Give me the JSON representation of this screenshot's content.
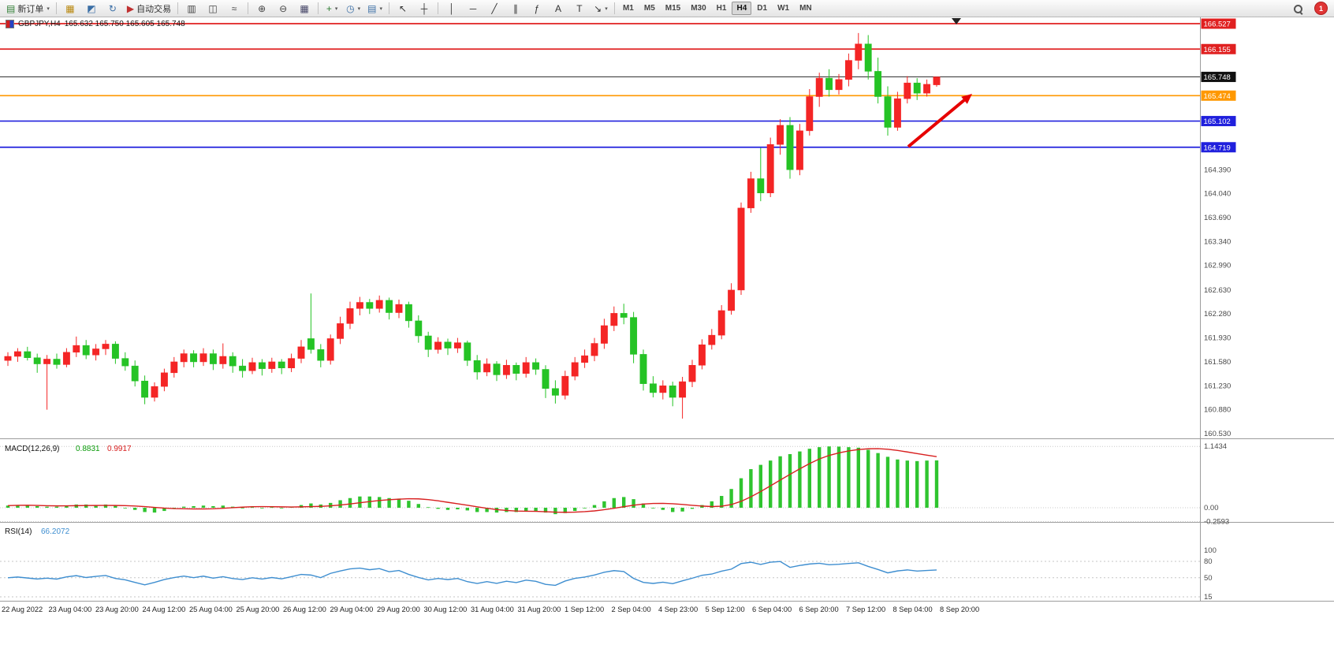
{
  "toolbar": {
    "items": [
      {
        "t": "b",
        "n": "new-order-button",
        "g": "▤",
        "gc": "#2e7d32",
        "l": "新订单",
        "dd": true
      },
      {
        "t": "s"
      },
      {
        "t": "b",
        "n": "market-watch-button",
        "g": "▦",
        "gc": "#b8860b"
      },
      {
        "t": "b",
        "n": "navigator-button",
        "g": "◩",
        "gc": "#3a6ea5"
      },
      {
        "t": "b",
        "n": "refresh-button",
        "g": "↻",
        "gc": "#3a6ea5"
      },
      {
        "t": "b",
        "n": "autotrade-button",
        "g": "▶",
        "gc": "#c03030",
        "l": "自动交易"
      },
      {
        "t": "s"
      },
      {
        "t": "b",
        "n": "bar-chart-button",
        "g": "▥",
        "gc": "#444"
      },
      {
        "t": "b",
        "n": "candlestick-chart-button",
        "g": "◫",
        "gc": "#444"
      },
      {
        "t": "b",
        "n": "line-chart-button",
        "g": "≈",
        "gc": "#444"
      },
      {
        "t": "s"
      },
      {
        "t": "b",
        "n": "zoom-in-button",
        "g": "⊕",
        "gc": "#444"
      },
      {
        "t": "b",
        "n": "zoom-out-button",
        "g": "⊖",
        "gc": "#444"
      },
      {
        "t": "b",
        "n": "tile-windows-button",
        "g": "▦",
        "gc": "#446"
      },
      {
        "t": "s"
      },
      {
        "t": "b",
        "n": "indicators-button",
        "g": "+",
        "gc": "#2e7d32",
        "dd": true
      },
      {
        "t": "b",
        "n": "periods-button",
        "g": "◷",
        "gc": "#3a6ea5",
        "dd": true
      },
      {
        "t": "b",
        "n": "templates-button",
        "g": "▤",
        "gc": "#3a6ea5",
        "dd": true
      },
      {
        "t": "s"
      },
      {
        "t": "b",
        "n": "cursor-button",
        "g": "↖",
        "gc": "#333"
      },
      {
        "t": "b",
        "n": "crosshair-button",
        "g": "┼",
        "gc": "#333"
      },
      {
        "t": "s"
      },
      {
        "t": "b",
        "n": "vertical-line-button",
        "g": "│",
        "gc": "#333"
      },
      {
        "t": "b",
        "n": "horizontal-line-button",
        "g": "─",
        "gc": "#333"
      },
      {
        "t": "b",
        "n": "trendline-button",
        "g": "╱",
        "gc": "#333"
      },
      {
        "t": "b",
        "n": "channel-button",
        "g": "∥",
        "gc": "#333"
      },
      {
        "t": "b",
        "n": "fibonacci-button",
        "g": "ƒ",
        "gc": "#333"
      },
      {
        "t": "b",
        "n": "text-button",
        "g": "A",
        "gc": "#333"
      },
      {
        "t": "b",
        "n": "label-button",
        "g": "T",
        "gc": "#333"
      },
      {
        "t": "b",
        "n": "arrows-button",
        "g": "↘",
        "gc": "#333",
        "dd": true
      },
      {
        "t": "s"
      },
      {
        "t": "tfs"
      }
    ],
    "timeframes": [
      "M1",
      "M5",
      "M15",
      "M30",
      "H1",
      "H4",
      "D1",
      "W1",
      "MN"
    ],
    "active_timeframe": "H4",
    "notification_count": "1"
  },
  "chart": {
    "symbol_title": "GBPJPY,H4",
    "ohlc_readout": "165.632 165.750 165.605 165.748",
    "levels": [
      {
        "price": 166.527,
        "label": "166.527",
        "color": "#e02020"
      },
      {
        "price": 166.155,
        "label": "166.155",
        "color": "#e02020"
      },
      {
        "price": 165.474,
        "label": "165.474",
        "color": "#ff9800"
      },
      {
        "price": 165.102,
        "label": "165.102",
        "color": "#2020dd"
      },
      {
        "price": 164.719,
        "label": "164.719",
        "color": "#2020dd"
      }
    ],
    "current_price": {
      "price": 165.748,
      "label": "165.748",
      "line_color": "#333333",
      "badge_color": "#111111"
    },
    "right_scale": [
      164.39,
      164.04,
      163.69,
      163.34,
      162.99,
      162.63,
      162.28,
      161.93,
      161.58,
      161.23,
      160.88,
      160.53
    ]
  },
  "macd": {
    "title": "MACD(12,26,9)",
    "main_value": "0.8831",
    "signal_value": "0.9917",
    "scale": [
      {
        "label": "1.1434",
        "value": 1.1434
      },
      {
        "label": "0.00",
        "value": 0
      },
      {
        "label": "-0.2593",
        "value": -0.2593
      }
    ],
    "histogram_color": "#2fc42f",
    "signal_color": "#d82020"
  },
  "rsi": {
    "title": "RSI(14)",
    "value": "66.2072",
    "scale": [
      {
        "label": "100",
        "value": 100
      },
      {
        "label": "80",
        "value": 80
      },
      {
        "label": "50",
        "value": 50
      },
      {
        "label": "15",
        "value": 15
      }
    ],
    "line_color": "#3e8ed0"
  },
  "chart_data": {
    "type": "candlestick",
    "symbol": "GBPJPY",
    "period": "H4",
    "up_color": "#f42525",
    "down_color": "#25c325",
    "ylim": [
      160.53,
      166.527
    ],
    "x_labels": [
      "22 Aug 2022",
      "23 Aug 04:00",
      "23 Aug 20:00",
      "24 Aug 12:00",
      "25 Aug 04:00",
      "25 Aug 20:00",
      "26 Aug 12:00",
      "29 Aug 04:00",
      "29 Aug 20:00",
      "30 Aug 12:00",
      "31 Aug 04:00",
      "31 Aug 20:00",
      "1 Sep 12:00",
      "2 Sep 04:00",
      "4 Sep 23:00",
      "5 Sep 12:00",
      "6 Sep 04:00",
      "6 Sep 20:00",
      "7 Sep 12:00",
      "8 Sep 04:00",
      "8 Sep 20:00"
    ],
    "candles": [
      [
        161.6,
        161.72,
        161.52,
        161.66
      ],
      [
        161.66,
        161.78,
        161.58,
        161.73
      ],
      [
        161.73,
        161.8,
        161.6,
        161.64
      ],
      [
        161.64,
        161.7,
        161.42,
        161.55
      ],
      [
        161.55,
        161.68,
        160.88,
        161.62
      ],
      [
        161.62,
        161.7,
        161.48,
        161.54
      ],
      [
        161.54,
        161.78,
        161.5,
        161.72
      ],
      [
        161.72,
        161.95,
        161.65,
        161.82
      ],
      [
        161.82,
        161.9,
        161.62,
        161.68
      ],
      [
        161.68,
        161.84,
        161.6,
        161.77
      ],
      [
        161.77,
        161.9,
        161.68,
        161.84
      ],
      [
        161.84,
        161.88,
        161.55,
        161.63
      ],
      [
        161.63,
        161.72,
        161.45,
        161.52
      ],
      [
        161.52,
        161.6,
        161.22,
        161.3
      ],
      [
        161.3,
        161.38,
        160.96,
        161.06
      ],
      [
        161.06,
        161.28,
        161.0,
        161.22
      ],
      [
        161.22,
        161.48,
        161.15,
        161.42
      ],
      [
        161.42,
        161.65,
        161.35,
        161.58
      ],
      [
        161.58,
        161.76,
        161.5,
        161.7
      ],
      [
        161.7,
        161.75,
        161.5,
        161.58
      ],
      [
        161.58,
        161.78,
        161.52,
        161.7
      ],
      [
        161.7,
        161.76,
        161.46,
        161.55
      ],
      [
        161.55,
        161.85,
        161.48,
        161.66
      ],
      [
        161.66,
        161.72,
        161.42,
        161.52
      ],
      [
        161.52,
        161.62,
        161.35,
        161.45
      ],
      [
        161.45,
        161.64,
        161.4,
        161.57
      ],
      [
        161.57,
        161.62,
        161.38,
        161.48
      ],
      [
        161.48,
        161.64,
        161.42,
        161.58
      ],
      [
        161.58,
        161.62,
        161.4,
        161.49
      ],
      [
        161.49,
        161.7,
        161.43,
        161.63
      ],
      [
        161.63,
        161.9,
        161.56,
        161.8
      ],
      [
        161.92,
        162.58,
        161.7,
        161.76
      ],
      [
        161.76,
        161.84,
        161.5,
        161.6
      ],
      [
        161.6,
        161.98,
        161.54,
        161.92
      ],
      [
        161.92,
        162.24,
        161.84,
        162.14
      ],
      [
        162.14,
        162.46,
        162.06,
        162.36
      ],
      [
        162.36,
        162.53,
        162.26,
        162.45
      ],
      [
        162.45,
        162.5,
        162.28,
        162.36
      ],
      [
        162.36,
        162.55,
        162.3,
        162.48
      ],
      [
        162.48,
        162.52,
        162.2,
        162.3
      ],
      [
        162.3,
        162.49,
        162.22,
        162.42
      ],
      [
        162.42,
        162.46,
        162.08,
        162.18
      ],
      [
        162.18,
        162.26,
        161.86,
        161.96
      ],
      [
        161.96,
        162.02,
        161.65,
        161.76
      ],
      [
        161.76,
        161.94,
        161.7,
        161.87
      ],
      [
        161.87,
        161.92,
        161.68,
        161.78
      ],
      [
        161.78,
        161.93,
        161.71,
        161.86
      ],
      [
        161.86,
        161.89,
        161.52,
        161.6
      ],
      [
        161.6,
        161.68,
        161.32,
        161.43
      ],
      [
        161.43,
        161.63,
        161.37,
        161.55
      ],
      [
        161.55,
        161.59,
        161.3,
        161.39
      ],
      [
        161.39,
        161.61,
        161.33,
        161.53
      ],
      [
        161.53,
        161.57,
        161.31,
        161.41
      ],
      [
        161.41,
        161.65,
        161.35,
        161.57
      ],
      [
        161.57,
        161.63,
        161.39,
        161.47
      ],
      [
        161.47,
        161.53,
        161.05,
        161.19
      ],
      [
        161.19,
        161.31,
        160.97,
        161.09
      ],
      [
        161.09,
        161.45,
        161.03,
        161.37
      ],
      [
        161.37,
        161.65,
        161.31,
        161.57
      ],
      [
        161.57,
        161.76,
        161.49,
        161.67
      ],
      [
        161.67,
        161.93,
        161.59,
        161.85
      ],
      [
        161.85,
        162.21,
        161.77,
        162.11
      ],
      [
        162.11,
        162.39,
        162.03,
        162.29
      ],
      [
        162.29,
        162.43,
        162.13,
        162.23
      ],
      [
        162.23,
        162.31,
        161.56,
        161.69
      ],
      [
        161.69,
        161.76,
        161.16,
        161.26
      ],
      [
        161.26,
        161.37,
        161.06,
        161.13
      ],
      [
        161.13,
        161.31,
        161.03,
        161.23
      ],
      [
        161.23,
        161.29,
        160.93,
        161.06
      ],
      [
        161.06,
        161.36,
        160.75,
        161.29
      ],
      [
        161.29,
        161.61,
        161.21,
        161.53
      ],
      [
        161.53,
        161.91,
        161.47,
        161.83
      ],
      [
        161.83,
        162.06,
        161.76,
        161.97
      ],
      [
        161.97,
        162.41,
        161.91,
        162.33
      ],
      [
        162.33,
        162.73,
        162.27,
        162.63
      ],
      [
        162.63,
        163.91,
        162.56,
        163.83
      ],
      [
        163.83,
        164.36,
        163.76,
        164.26
      ],
      [
        164.26,
        164.71,
        163.93,
        164.05
      ],
      [
        164.05,
        164.86,
        163.99,
        164.76
      ],
      [
        164.76,
        165.13,
        164.61,
        165.04
      ],
      [
        165.04,
        165.16,
        164.26,
        164.39
      ],
      [
        164.39,
        165.06,
        164.31,
        164.96
      ],
      [
        164.96,
        165.57,
        164.89,
        165.46
      ],
      [
        165.46,
        165.81,
        165.31,
        165.73
      ],
      [
        165.73,
        165.86,
        165.46,
        165.56
      ],
      [
        165.56,
        165.79,
        165.49,
        165.71
      ],
      [
        165.71,
        166.09,
        165.61,
        165.99
      ],
      [
        165.99,
        166.39,
        165.86,
        166.23
      ],
      [
        166.23,
        166.36,
        165.71,
        165.83
      ],
      [
        165.83,
        166.03,
        165.36,
        165.46
      ],
      [
        165.46,
        165.61,
        164.89,
        165.01
      ],
      [
        165.01,
        165.53,
        164.96,
        165.43
      ],
      [
        165.43,
        165.76,
        165.36,
        165.66
      ],
      [
        165.66,
        165.73,
        165.41,
        165.51
      ],
      [
        165.51,
        165.71,
        165.46,
        165.64
      ],
      [
        165.632,
        165.75,
        165.605,
        165.748
      ]
    ],
    "macd_histogram": [
      0.04,
      0.05,
      0.05,
      0.03,
      0.02,
      0.02,
      0.04,
      0.06,
      0.06,
      0.05,
      0.06,
      0.04,
      0.0,
      -0.04,
      -0.08,
      -0.09,
      -0.06,
      -0.02,
      0.02,
      0.03,
      0.04,
      0.03,
      0.04,
      0.02,
      0.0,
      0.01,
      0.0,
      0.01,
      0.0,
      0.02,
      0.05,
      0.08,
      0.06,
      0.09,
      0.14,
      0.18,
      0.21,
      0.21,
      0.2,
      0.18,
      0.17,
      0.13,
      0.07,
      0.01,
      -0.02,
      -0.04,
      -0.03,
      -0.05,
      -0.08,
      -0.08,
      -0.09,
      -0.08,
      -0.08,
      -0.06,
      -0.06,
      -0.09,
      -0.12,
      -0.1,
      -0.06,
      -0.01,
      0.05,
      0.12,
      0.18,
      0.2,
      0.16,
      0.08,
      0.0,
      -0.04,
      -0.08,
      -0.07,
      -0.02,
      0.05,
      0.12,
      0.22,
      0.35,
      0.55,
      0.72,
      0.8,
      0.88,
      0.96,
      1.0,
      1.05,
      1.1,
      1.13,
      1.1434,
      1.14,
      1.13,
      1.12,
      1.08,
      1.02,
      0.95,
      0.9,
      0.88,
      0.87,
      0.88,
      0.8831
    ]
  }
}
